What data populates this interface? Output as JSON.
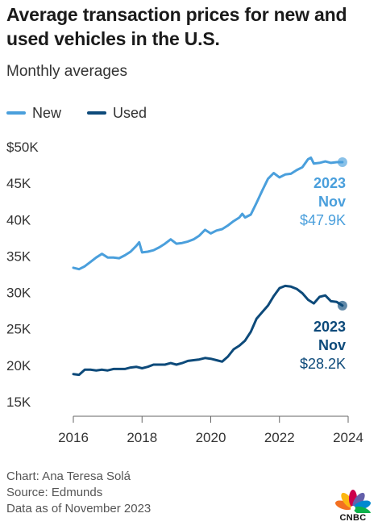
{
  "title": "Average transaction prices for new and used vehicles in the U.S.",
  "subtitle": "Monthly averages",
  "legend": [
    {
      "label": "New",
      "color": "#4a9fdc"
    },
    {
      "label": "Used",
      "color": "#0d4a7a"
    }
  ],
  "footer": {
    "credit": "Chart: Ana Teresa Solá",
    "source": "Source: Edmunds",
    "date_note": "Data as of November 2023"
  },
  "logo": {
    "text": "CNBC",
    "icon": "cnbc-peacock-logo"
  },
  "chart_data": {
    "type": "line",
    "title": "Average transaction prices for new and used vehicles in the U.S.",
    "subtitle": "Monthly averages",
    "xlabel": "",
    "ylabel": "",
    "x_ticks": [
      "2016",
      "2018",
      "2020",
      "2022",
      "2024"
    ],
    "y_ticks": [
      "$50K",
      "45K",
      "40K",
      "35K",
      "30K",
      "25K",
      "20K",
      "15K"
    ],
    "ylim": [
      15000,
      50000
    ],
    "xlim": [
      "2016-01",
      "2024-01"
    ],
    "grid": false,
    "legend_position": "top-left",
    "series": [
      {
        "name": "New",
        "color": "#4a9fdc",
        "points": [
          [
            "2016-01",
            33400
          ],
          [
            "2016-03",
            33200
          ],
          [
            "2016-05",
            33600
          ],
          [
            "2016-07",
            34200
          ],
          [
            "2016-09",
            34800
          ],
          [
            "2016-11",
            35300
          ],
          [
            "2017-01",
            34800
          ],
          [
            "2017-03",
            34800
          ],
          [
            "2017-05",
            34700
          ],
          [
            "2017-07",
            35100
          ],
          [
            "2017-09",
            35600
          ],
          [
            "2017-11",
            36400
          ],
          [
            "2017-12",
            36900
          ],
          [
            "2018-01",
            35500
          ],
          [
            "2018-03",
            35600
          ],
          [
            "2018-05",
            35800
          ],
          [
            "2018-07",
            36200
          ],
          [
            "2018-09",
            36700
          ],
          [
            "2018-11",
            37300
          ],
          [
            "2019-01",
            36700
          ],
          [
            "2019-03",
            36800
          ],
          [
            "2019-05",
            37000
          ],
          [
            "2019-07",
            37300
          ],
          [
            "2019-09",
            37800
          ],
          [
            "2019-11",
            38600
          ],
          [
            "2020-01",
            38100
          ],
          [
            "2020-03",
            38500
          ],
          [
            "2020-05",
            38700
          ],
          [
            "2020-07",
            39200
          ],
          [
            "2020-09",
            39800
          ],
          [
            "2020-11",
            40300
          ],
          [
            "2020-12",
            40800
          ],
          [
            "2021-01",
            40300
          ],
          [
            "2021-03",
            40700
          ],
          [
            "2021-05",
            42300
          ],
          [
            "2021-07",
            44000
          ],
          [
            "2021-09",
            45600
          ],
          [
            "2021-11",
            46400
          ],
          [
            "2022-01",
            45800
          ],
          [
            "2022-03",
            46200
          ],
          [
            "2022-05",
            46300
          ],
          [
            "2022-07",
            46800
          ],
          [
            "2022-09",
            47200
          ],
          [
            "2022-11",
            48300
          ],
          [
            "2022-12",
            48500
          ],
          [
            "2023-01",
            47700
          ],
          [
            "2023-03",
            47800
          ],
          [
            "2023-05",
            48000
          ],
          [
            "2023-07",
            47800
          ],
          [
            "2023-09",
            47900
          ],
          [
            "2023-11",
            47900
          ]
        ],
        "last_value_label": {
          "year": "2023",
          "month": "Nov",
          "value": "$47.9K"
        }
      },
      {
        "name": "Used",
        "color": "#0d4a7a",
        "points": [
          [
            "2016-01",
            18800
          ],
          [
            "2016-03",
            18700
          ],
          [
            "2016-05",
            19400
          ],
          [
            "2016-07",
            19400
          ],
          [
            "2016-09",
            19300
          ],
          [
            "2016-11",
            19400
          ],
          [
            "2017-01",
            19300
          ],
          [
            "2017-03",
            19500
          ],
          [
            "2017-05",
            19500
          ],
          [
            "2017-07",
            19500
          ],
          [
            "2017-09",
            19700
          ],
          [
            "2017-11",
            19800
          ],
          [
            "2018-01",
            19600
          ],
          [
            "2018-03",
            19800
          ],
          [
            "2018-05",
            20100
          ],
          [
            "2018-07",
            20100
          ],
          [
            "2018-09",
            20100
          ],
          [
            "2018-11",
            20300
          ],
          [
            "2019-01",
            20100
          ],
          [
            "2019-03",
            20300
          ],
          [
            "2019-05",
            20600
          ],
          [
            "2019-07",
            20700
          ],
          [
            "2019-09",
            20800
          ],
          [
            "2019-11",
            21000
          ],
          [
            "2020-01",
            20900
          ],
          [
            "2020-03",
            20700
          ],
          [
            "2020-05",
            20500
          ],
          [
            "2020-07",
            21200
          ],
          [
            "2020-09",
            22200
          ],
          [
            "2020-11",
            22700
          ],
          [
            "2021-01",
            23400
          ],
          [
            "2021-03",
            24600
          ],
          [
            "2021-05",
            26400
          ],
          [
            "2021-07",
            27300
          ],
          [
            "2021-09",
            28200
          ],
          [
            "2021-11",
            29500
          ],
          [
            "2022-01",
            30600
          ],
          [
            "2022-03",
            30900
          ],
          [
            "2022-05",
            30800
          ],
          [
            "2022-07",
            30500
          ],
          [
            "2022-09",
            29900
          ],
          [
            "2022-11",
            29000
          ],
          [
            "2023-01",
            28500
          ],
          [
            "2023-03",
            29400
          ],
          [
            "2023-05",
            29600
          ],
          [
            "2023-07",
            28800
          ],
          [
            "2023-09",
            28700
          ],
          [
            "2023-11",
            28200
          ]
        ],
        "last_value_label": {
          "year": "2023",
          "month": "Nov",
          "value": "$28.2K"
        }
      }
    ]
  }
}
